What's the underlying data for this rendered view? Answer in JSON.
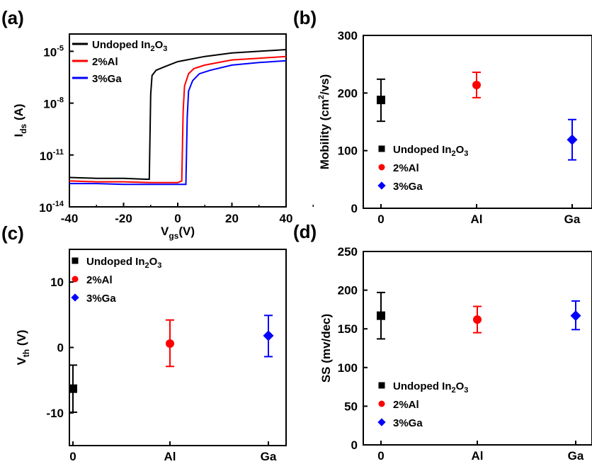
{
  "chart_data": [
    {
      "panel": "(a)",
      "type": "line",
      "xlabel": "V",
      "xlabel_sub": "gs",
      "xlabel_unit": "(V)",
      "ylabel": "I",
      "ylabel_sub": "ds",
      "ylabel_unit": " (A)",
      "xlim": [
        -40,
        40
      ],
      "ylim_log10": [
        -14,
        -4
      ],
      "yscale": "log",
      "xticks": [
        "-40",
        "-20",
        "0",
        "20",
        "40"
      ],
      "yticks": [
        {
          "base": "10",
          "exp": "-5",
          "log": -5
        },
        {
          "base": "10",
          "exp": "-8",
          "log": -8
        },
        {
          "base": "10",
          "exp": "-11",
          "log": -11
        },
        {
          "base": "10",
          "exp": "-14",
          "log": -14
        }
      ],
      "legend_position": "top-left",
      "series": [
        {
          "name": "Undoped In",
          "name_sub": "2",
          "name_tail": "O",
          "name_sub2": "3",
          "color": "#000000",
          "x": [
            -40,
            -30,
            -20,
            -12,
            -10.5,
            -10,
            -9.5,
            -8,
            -5,
            0,
            10,
            20,
            30,
            40
          ],
          "log_y": [
            -12.3,
            -12.35,
            -12.35,
            -12.4,
            -12.4,
            -7.5,
            -6.4,
            -6.1,
            -5.9,
            -5.6,
            -5.3,
            -5.1,
            -5.0,
            -4.9
          ]
        },
        {
          "name": "2%Al",
          "color": "#ff0000",
          "x": [
            -40,
            -30,
            -20,
            -10,
            0,
            1.5,
            2,
            2.5,
            4,
            6,
            10,
            20,
            30,
            40
          ],
          "log_y": [
            -12.5,
            -12.55,
            -12.55,
            -12.6,
            -12.6,
            -12.5,
            -8.5,
            -7.0,
            -6.3,
            -6.0,
            -5.8,
            -5.5,
            -5.4,
            -5.3
          ]
        },
        {
          "name": "3%Ga",
          "color": "#0000ff",
          "x": [
            -40,
            -30,
            -20,
            -10,
            0,
            3,
            3.5,
            4,
            5.5,
            8,
            12,
            20,
            30,
            40
          ],
          "log_y": [
            -12.65,
            -12.65,
            -12.7,
            -12.7,
            -12.7,
            -12.7,
            -8.8,
            -7.3,
            -6.7,
            -6.3,
            -6.1,
            -5.8,
            -5.65,
            -5.55
          ]
        }
      ]
    },
    {
      "panel": "(b)",
      "type": "scatter",
      "ylabel": "Mobility (cm",
      "ylabel_sup": "2",
      "ylabel_tail": "/vs)",
      "categories": [
        "0",
        "Al",
        "Ga"
      ],
      "ylim": [
        0,
        300
      ],
      "yticks": [
        "0",
        "100",
        "200",
        "300"
      ],
      "legend_position": "bottom-left",
      "series": [
        {
          "name": "Undoped In",
          "name_sub": "2",
          "name_tail": "O",
          "name_sub2": "3",
          "color": "#000000",
          "marker": "square",
          "category": "0",
          "value": 188,
          "err_low": 151,
          "err_high": 224
        },
        {
          "name": "2%Al",
          "color": "#ff0000",
          "marker": "circle",
          "category": "Al",
          "value": 214,
          "err_low": 192,
          "err_high": 236
        },
        {
          "name": "3%Ga",
          "color": "#0000ff",
          "marker": "diamond",
          "category": "Ga",
          "value": 119,
          "err_low": 84,
          "err_high": 154
        }
      ]
    },
    {
      "panel": "(c)",
      "type": "scatter",
      "ylabel": "V",
      "ylabel_sub": "th",
      "ylabel_unit": " (V)",
      "categories": [
        "0",
        "Al",
        "Ga"
      ],
      "ylim": [
        -15,
        15
      ],
      "yticks": [
        "-10",
        "0",
        "10"
      ],
      "legend_position": "top-left",
      "series": [
        {
          "name": "Undoped In",
          "name_sub": "2",
          "name_tail": "O",
          "name_sub2": "3",
          "color": "#000000",
          "marker": "square",
          "category": "0",
          "value": -6.3,
          "err_low": -9.9,
          "err_high": -2.7
        },
        {
          "name": "2%Al",
          "color": "#ff0000",
          "marker": "circle",
          "category": "Al",
          "value": 0.6,
          "err_low": -2.9,
          "err_high": 4.2
        },
        {
          "name": "3%Ga",
          "color": "#0000ff",
          "marker": "diamond",
          "category": "Ga",
          "value": 1.8,
          "err_low": -1.4,
          "err_high": 4.9
        }
      ]
    },
    {
      "panel": "(d)",
      "type": "scatter",
      "ylabel": "SS (mv/dec)",
      "categories": [
        "0",
        "Al",
        "Ga"
      ],
      "ylim": [
        0,
        250
      ],
      "yticks": [
        "0",
        "50",
        "100",
        "150",
        "200",
        "250"
      ],
      "legend_position": "bottom-left",
      "series": [
        {
          "name": "Undoped In",
          "name_sub": "2",
          "name_tail": "O",
          "name_sub2": "3",
          "color": "#000000",
          "marker": "square",
          "category": "0",
          "value": 167,
          "err_low": 137,
          "err_high": 197
        },
        {
          "name": "2%Al",
          "color": "#ff0000",
          "marker": "circle",
          "category": "Al",
          "value": 162,
          "err_low": 145,
          "err_high": 179
        },
        {
          "name": "3%Ga",
          "color": "#0000ff",
          "marker": "diamond",
          "category": "Ga",
          "value": 167,
          "err_low": 149,
          "err_high": 186
        }
      ]
    }
  ]
}
